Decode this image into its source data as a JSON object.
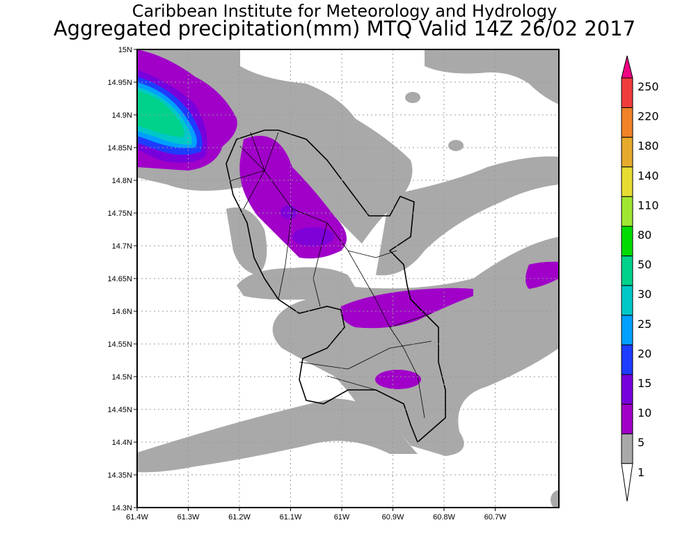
{
  "header": {
    "title_line1": "Caribbean Institute for Meteorology and Hydrology",
    "title_line2": "Aggregated precipitation(mm) MTQ Valid 14Z 26/02 2017"
  },
  "map": {
    "lat_labels": [
      "15N",
      "14.95N",
      "14.9N",
      "14.85N",
      "14.8N",
      "14.75N",
      "14.7N",
      "14.65N",
      "14.6N",
      "14.55N",
      "14.5N",
      "14.45N",
      "14.4N",
      "14.35N",
      "14.3N"
    ],
    "lon_labels": [
      "61.4W",
      "61.3W",
      "61.2W",
      "61.1W",
      "61W",
      "60.9W",
      "60.8W",
      "60.7W"
    ],
    "colors": {
      "light": "#a9a9a9",
      "5": "#a000c8",
      "10": "#7800dc",
      "15": "#1e3cff",
      "20": "#00a0ff",
      "25": "#00c8c8",
      "30": "#00d28c"
    }
  },
  "colorbar": {
    "labels": [
      "250",
      "220",
      "180",
      "140",
      "110",
      "80",
      "50",
      "30",
      "25",
      "20",
      "15",
      "10",
      "5",
      "1"
    ],
    "band_colors": [
      "#f03c3c",
      "#f08228",
      "#e6aa2d",
      "#e6dc32",
      "#a0e632",
      "#00dc00",
      "#00d28c",
      "#00c8c8",
      "#00a0ff",
      "#1e3cff",
      "#7800dc",
      "#a000c8",
      "#a9a9a9"
    ],
    "top_arrow_color": "#f00082",
    "bottom_arrow_color": "#ffffff"
  }
}
